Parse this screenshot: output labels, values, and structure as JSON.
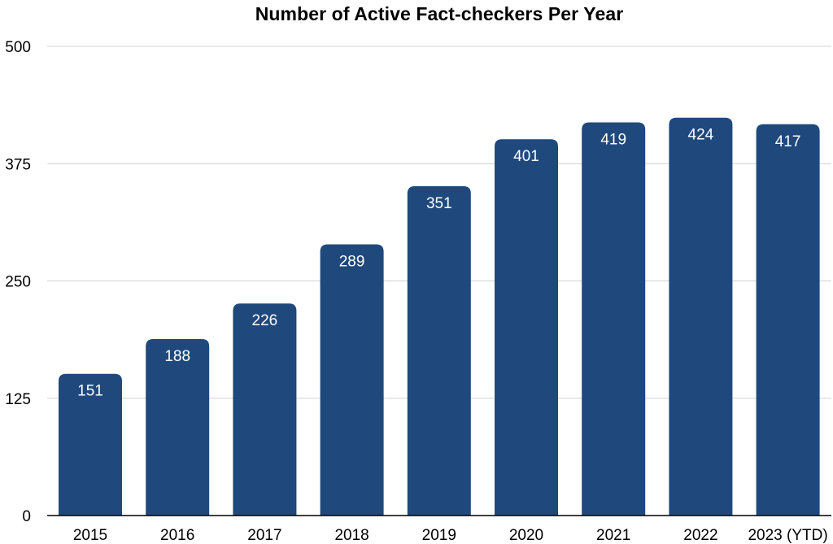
{
  "chart_data": {
    "type": "bar",
    "title": "Number of Active Fact-checkers Per Year",
    "categories": [
      "2015",
      "2016",
      "2017",
      "2018",
      "2019",
      "2020",
      "2021",
      "2022",
      "2023 (YTD)"
    ],
    "values": [
      151,
      188,
      226,
      289,
      351,
      401,
      419,
      424,
      417
    ],
    "data_labels": [
      "151",
      "188",
      "226",
      "289",
      "351",
      "401",
      "419",
      "424",
      "417"
    ],
    "xlabel": "",
    "ylabel": "",
    "ylim": [
      0,
      500
    ],
    "yticks": [
      0,
      125,
      250,
      375,
      500
    ],
    "ytick_labels": [
      "0",
      "125",
      "250",
      "375",
      "500"
    ],
    "grid": true,
    "legend": "none",
    "colors": {
      "bar": "#1f497d",
      "grid": "#d0d0d0",
      "axis": "#000000",
      "bar_label": "#ffffff"
    }
  }
}
